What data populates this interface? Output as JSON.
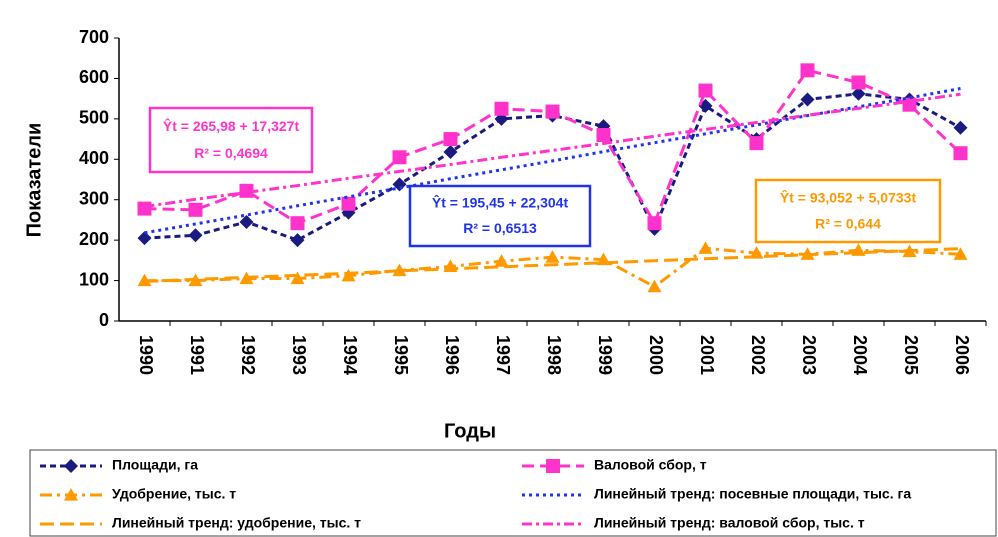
{
  "chart_data": {
    "type": "line",
    "xlabel": "Годы",
    "ylabel": "Показатели",
    "categories": [
      "1990",
      "1991",
      "1992",
      "1993",
      "1994",
      "1995",
      "1996",
      "1997",
      "1998",
      "1999",
      "2000",
      "2001",
      "2002",
      "2003",
      "2004",
      "2005",
      "2006"
    ],
    "ylim": [
      0,
      700
    ],
    "yticks": [
      0,
      100,
      200,
      300,
      400,
      500,
      600,
      700
    ],
    "series": [
      {
        "name": "Площади, га",
        "color": "#1a1a80",
        "marker": "diamond",
        "dash": "6,4",
        "values": [
          205,
          212,
          245,
          200,
          268,
          338,
          418,
          500,
          508,
          482,
          228,
          532,
          450,
          548,
          562,
          548,
          478
        ]
      },
      {
        "name": "Валовой сбор, т",
        "color": "#ff33cc",
        "marker": "square",
        "dash": "12,6",
        "values": [
          278,
          275,
          322,
          242,
          290,
          405,
          450,
          525,
          518,
          460,
          242,
          570,
          440,
          620,
          590,
          535,
          415
        ]
      },
      {
        "name": "Удобрение, тыс. т",
        "color": "#ff9900",
        "marker": "triangle",
        "dash": "12,5,3,5",
        "values": [
          100,
          100,
          105,
          105,
          112,
          125,
          135,
          148,
          158,
          152,
          85,
          180,
          168,
          165,
          175,
          172,
          165
        ]
      },
      {
        "name": "Линейный тренд: посевные площади, тыс. га",
        "color": "#2233ee",
        "marker": "none",
        "dash": "3,4",
        "values": [
          218,
          240,
          262,
          285,
          307,
          329,
          352,
          374,
          396,
          419,
          441,
          463,
          485,
          508,
          530,
          552,
          575
        ]
      },
      {
        "name": "Линейный тренд: удобрение, тыс. т",
        "color": "#ff9900",
        "marker": "none",
        "dash": "14,6",
        "values": [
          98,
          103,
          108,
          113,
          118,
          124,
          129,
          134,
          139,
          144,
          149,
          154,
          159,
          164,
          169,
          174,
          179
        ]
      },
      {
        "name": "Линейный тренд: валовой сбор, тыс. т",
        "color": "#ff33cc",
        "marker": "none",
        "dash": "10,4,3,4",
        "values": [
          283,
          301,
          318,
          335,
          353,
          370,
          387,
          405,
          422,
          439,
          457,
          474,
          491,
          509,
          526,
          543,
          561
        ]
      }
    ],
    "annotations": [
      {
        "color": "#ff33cc",
        "lines": [
          "Ŷt = 265,98 + 17,327t",
          "R² = 0,4694"
        ]
      },
      {
        "color": "#2233ee",
        "lines": [
          "Ŷt = 195,45 + 22,304t",
          "R² = 0,6513"
        ]
      },
      {
        "color": "#ff9900",
        "lines": [
          "Ŷt = 93,052 + 5,0733t",
          "R² = 0,644"
        ]
      }
    ]
  }
}
